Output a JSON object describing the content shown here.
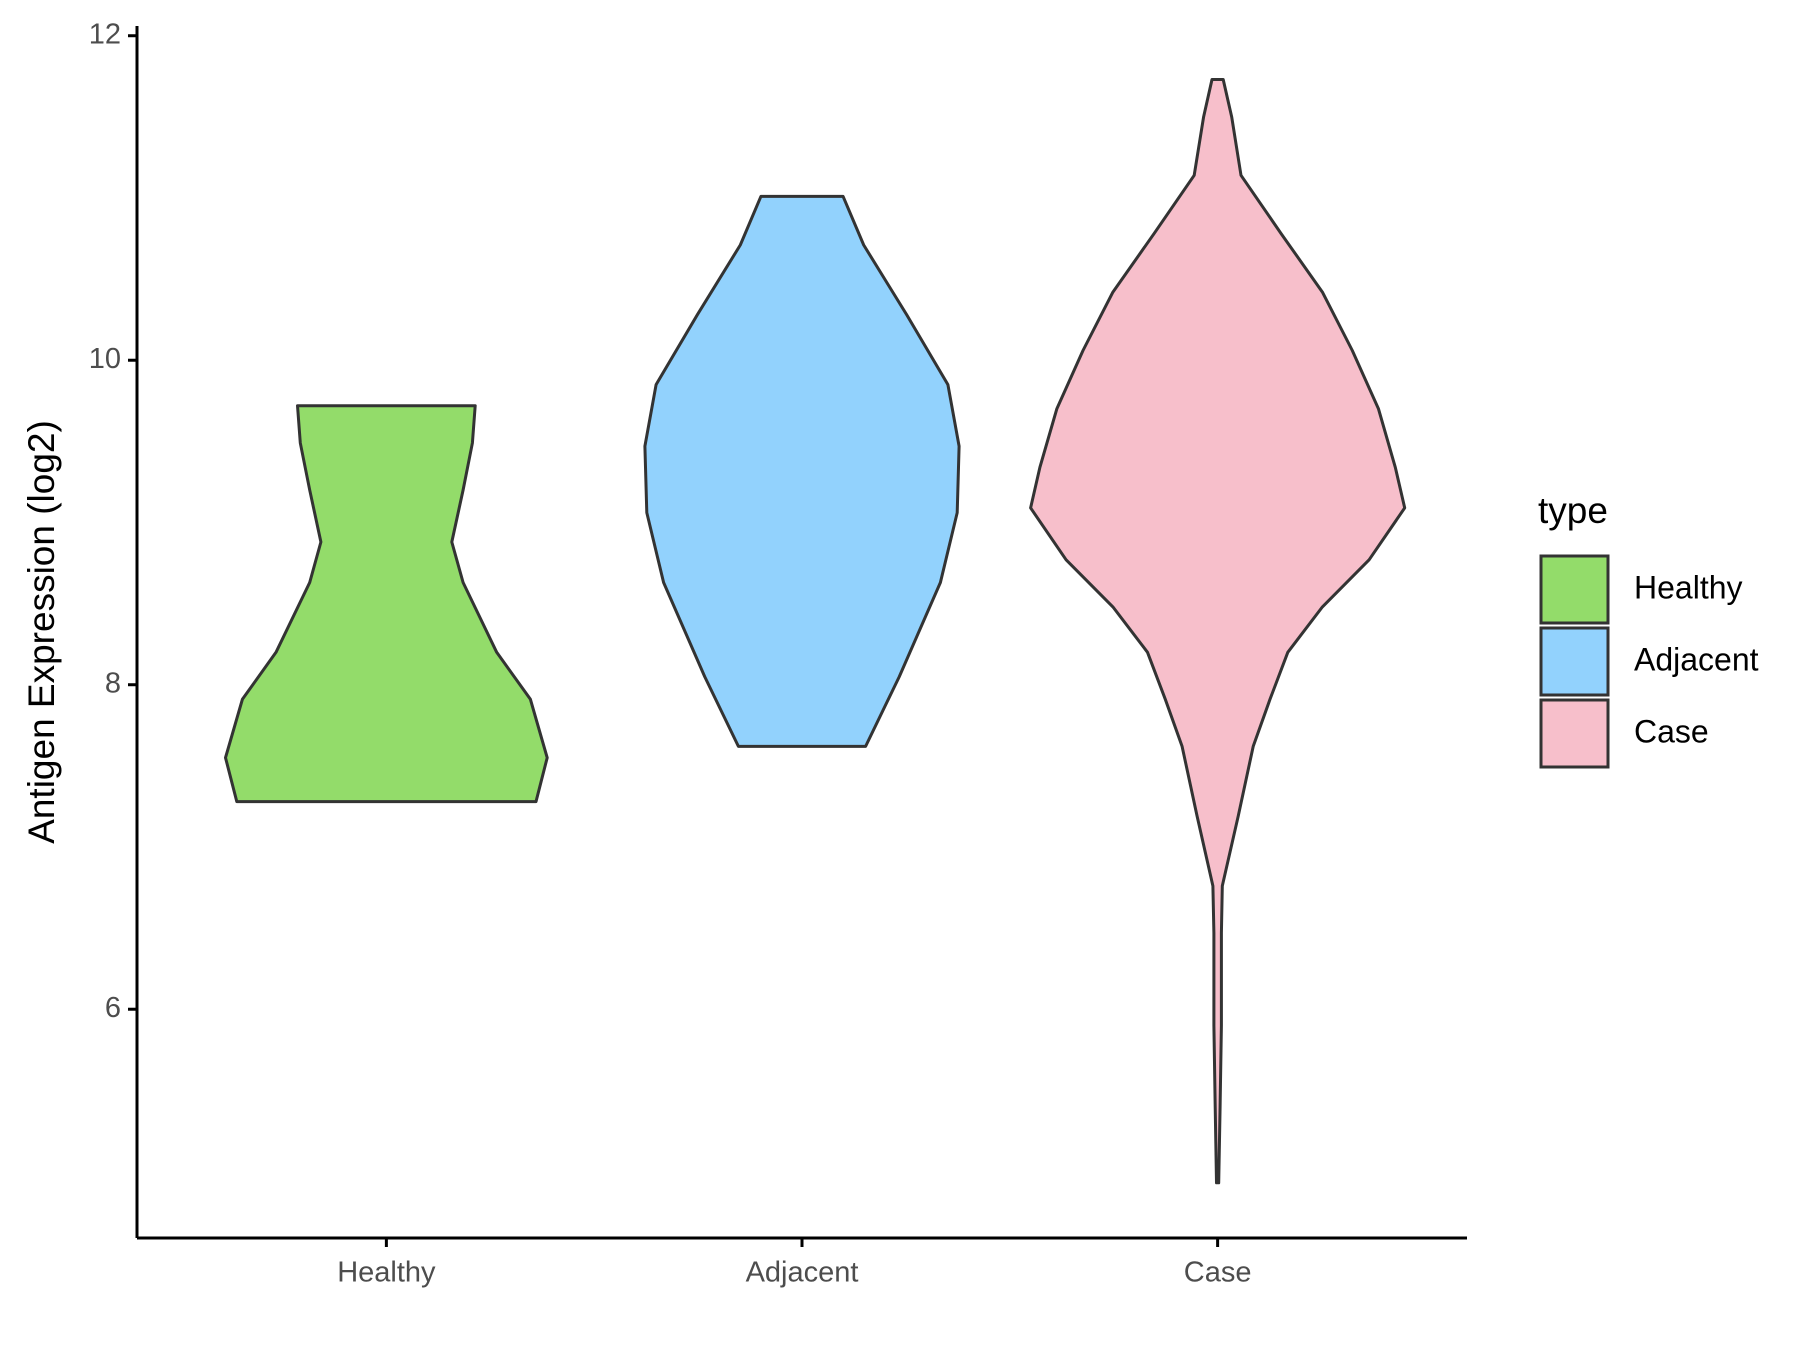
{
  "chart_data": {
    "type": "violin",
    "ylabel": "Antigen Expression (log2)",
    "categories": [
      "Healthy",
      "Adjacent",
      "Case"
    ],
    "legend_title": "type",
    "legend": "right",
    "ylim": [
      4.59,
      12.06
    ],
    "yticks": [
      6,
      8,
      10,
      12
    ],
    "series": [
      {
        "name": "Healthy",
        "color": "#93dc6a",
        "y": [
          7.28,
          7.55,
          7.91,
          8.2,
          8.63,
          8.88,
          9.2,
          9.49,
          9.72
        ],
        "density": [
          0.8,
          0.86,
          0.77,
          0.59,
          0.41,
          0.35,
          0.41,
          0.46,
          0.475
        ]
      },
      {
        "name": "Adjacent",
        "color": "#92d2fd",
        "y": [
          7.62,
          8.05,
          8.63,
          9.06,
          9.47,
          9.85,
          10.28,
          10.71,
          11.01
        ],
        "density": [
          0.34,
          0.52,
          0.74,
          0.83,
          0.84,
          0.78,
          0.56,
          0.33,
          0.22
        ]
      },
      {
        "name": "Case",
        "color": "#f7bfcb",
        "y": [
          4.93,
          5.4,
          5.9,
          6.47,
          6.76,
          7.19,
          7.62,
          7.91,
          8.2,
          8.48,
          8.77,
          9.09,
          9.34,
          9.7,
          10.06,
          10.42,
          10.78,
          11.14,
          11.5,
          11.73
        ],
        "density": [
          0.006,
          0.013,
          0.02,
          0.02,
          0.025,
          0.11,
          0.19,
          0.28,
          0.375,
          0.56,
          0.81,
          1.0,
          0.95,
          0.86,
          0.72,
          0.56,
          0.34,
          0.125,
          0.075,
          0.03
        ]
      }
    ]
  }
}
